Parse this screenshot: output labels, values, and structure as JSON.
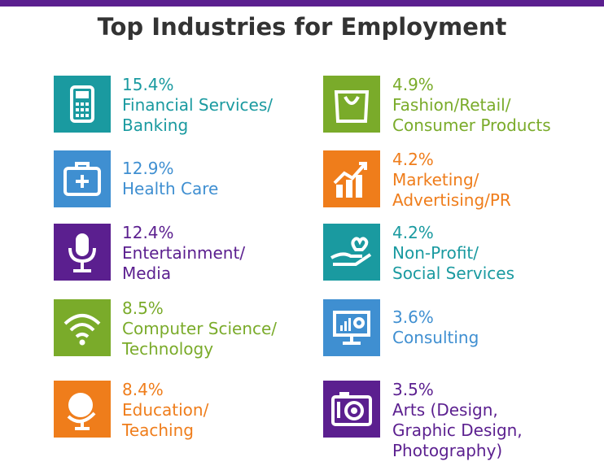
{
  "title": "Top Industries for Employment",
  "columns": [
    [
      {
        "percent": "15.4%",
        "label": [
          "Financial Services/",
          "Banking"
        ]
      },
      {
        "percent": "12.9%",
        "label": [
          "Health Care"
        ]
      },
      {
        "percent": "12.4%",
        "label": [
          "Entertainment/",
          "Media"
        ]
      },
      {
        "percent": "8.5%",
        "label": [
          "Computer Science/",
          "Technology"
        ]
      },
      {
        "percent": "8.4%",
        "label": [
          "Education/",
          "Teaching"
        ]
      }
    ],
    [
      {
        "percent": "4.9%",
        "label": [
          "Fashion/Retail/",
          "Consumer Products"
        ]
      },
      {
        "percent": "4.2%",
        "label": [
          "Marketing/",
          "Advertising/PR"
        ]
      },
      {
        "percent": "4.2%",
        "label": [
          "Non-Profit/",
          "Social Services"
        ]
      },
      {
        "percent": "3.6%",
        "label": [
          "Consulting"
        ]
      },
      {
        "percent": "3.5%",
        "label": [
          "Arts (Design,",
          "Graphic Design,",
          "Photography)"
        ]
      }
    ]
  ]
}
